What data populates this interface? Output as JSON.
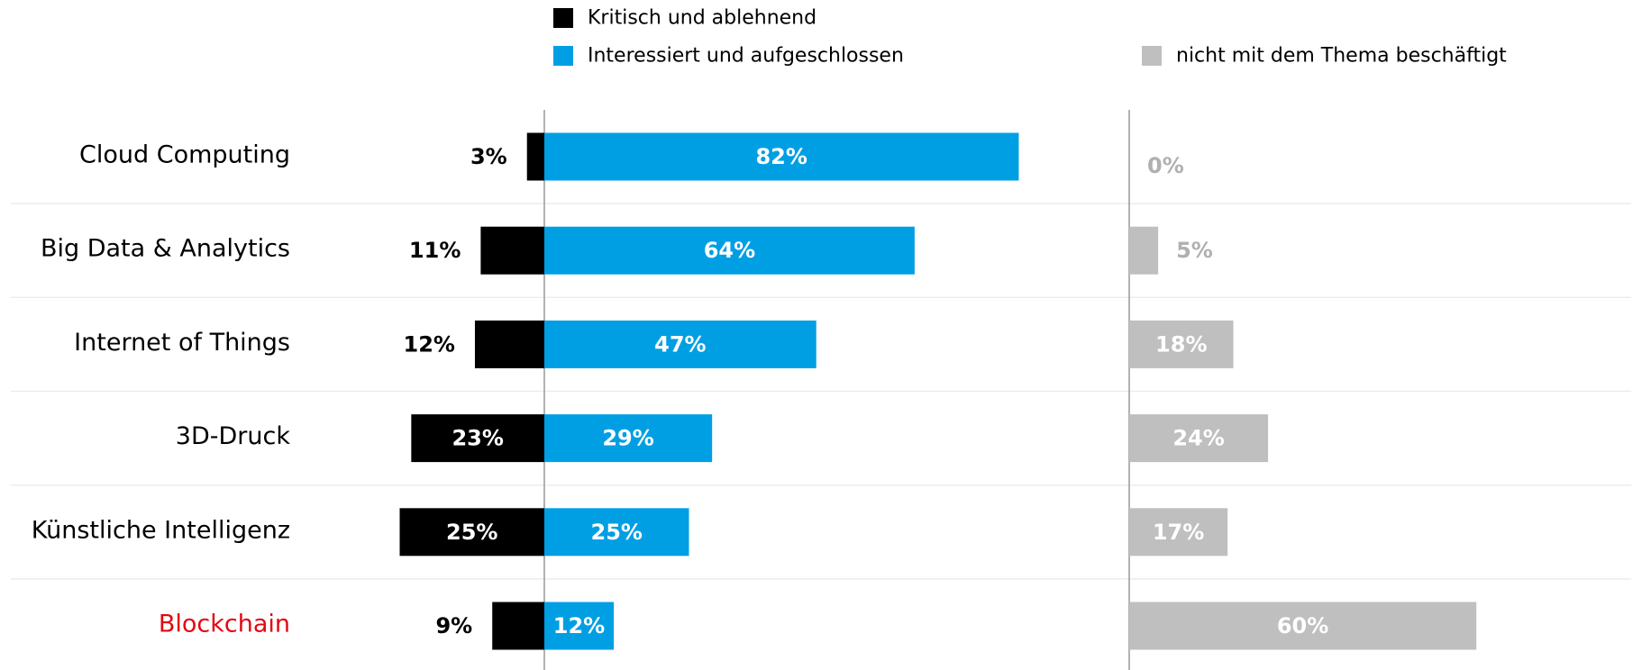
{
  "chart_data": {
    "type": "diverging_bar",
    "categories": [
      "Cloud Computing",
      "Big Data & Analytics",
      "Internet of Things",
      "3D-Druck",
      "Künstliche Intelligenz",
      "Blockchain"
    ],
    "category_colors": [
      "#000000",
      "#000000",
      "#000000",
      "#000000",
      "#000000",
      "#e30613"
    ],
    "series": [
      {
        "name": "Kritisch und ablehnend",
        "color": "#000000",
        "values": [
          3,
          11,
          12,
          23,
          25,
          9
        ],
        "value_labels": [
          "3%",
          "11%",
          "12%",
          "23%",
          "25%",
          "9%"
        ]
      },
      {
        "name": "Interessiert und aufgeschlossen",
        "color": "#009fe3",
        "values": [
          82,
          64,
          47,
          29,
          25,
          12
        ],
        "value_labels": [
          "82%",
          "64%",
          "47%",
          "29%",
          "25%",
          "12%"
        ]
      },
      {
        "name": "nicht mit dem Thema beschäftigt",
        "color": "#bfbfbf",
        "values": [
          0,
          5,
          18,
          24,
          17,
          60
        ],
        "value_labels": [
          "0%",
          "5%",
          "18%",
          "24%",
          "17%",
          "60%"
        ]
      }
    ]
  }
}
